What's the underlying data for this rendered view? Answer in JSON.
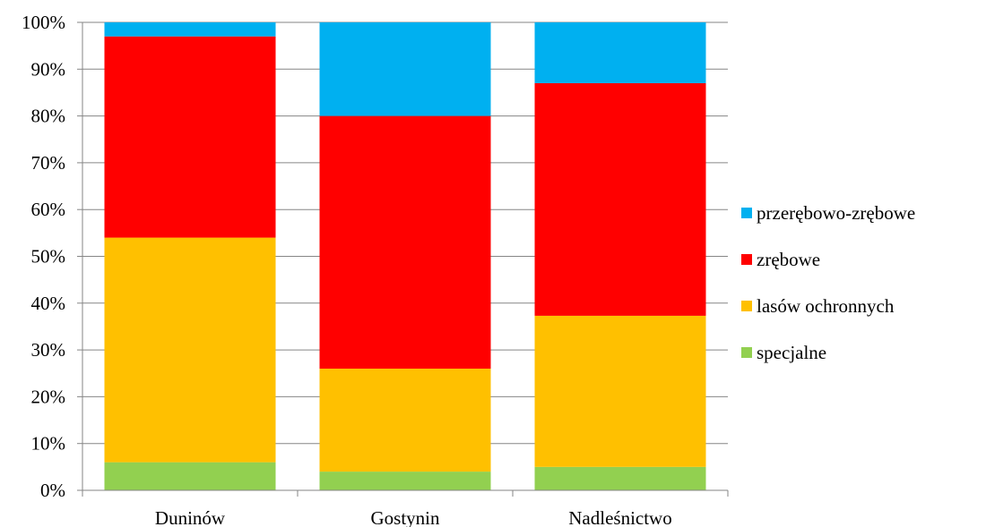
{
  "chart_data": {
    "type": "bar",
    "stacked": true,
    "percent_stacked": true,
    "categories": [
      "Duninów",
      "Gostynin",
      "Nadleśnictwo"
    ],
    "series": [
      {
        "name": "specjalne",
        "color": "#92D050",
        "values": [
          6,
          4,
          5
        ]
      },
      {
        "name": "lasów ochronnych",
        "color": "#FFC000",
        "values": [
          48,
          22,
          32.3
        ]
      },
      {
        "name": "zrębowe",
        "color": "#FF0000",
        "values": [
          43,
          54,
          49.7
        ]
      },
      {
        "name": "przerębowo-zrębowe",
        "color": "#00B0F0",
        "values": [
          3,
          20,
          13
        ]
      }
    ],
    "ylim": [
      0,
      100
    ],
    "yticks": [
      "0%",
      "10%",
      "20%",
      "30%",
      "40%",
      "50%",
      "60%",
      "70%",
      "80%",
      "90%",
      "100%"
    ],
    "grid": true,
    "legend_position": "right",
    "legend_order": [
      "przerębowo-zrębowe",
      "zrębowe",
      "lasów ochronnych",
      "specjalne"
    ],
    "title": "",
    "xlabel": "",
    "ylabel": ""
  }
}
